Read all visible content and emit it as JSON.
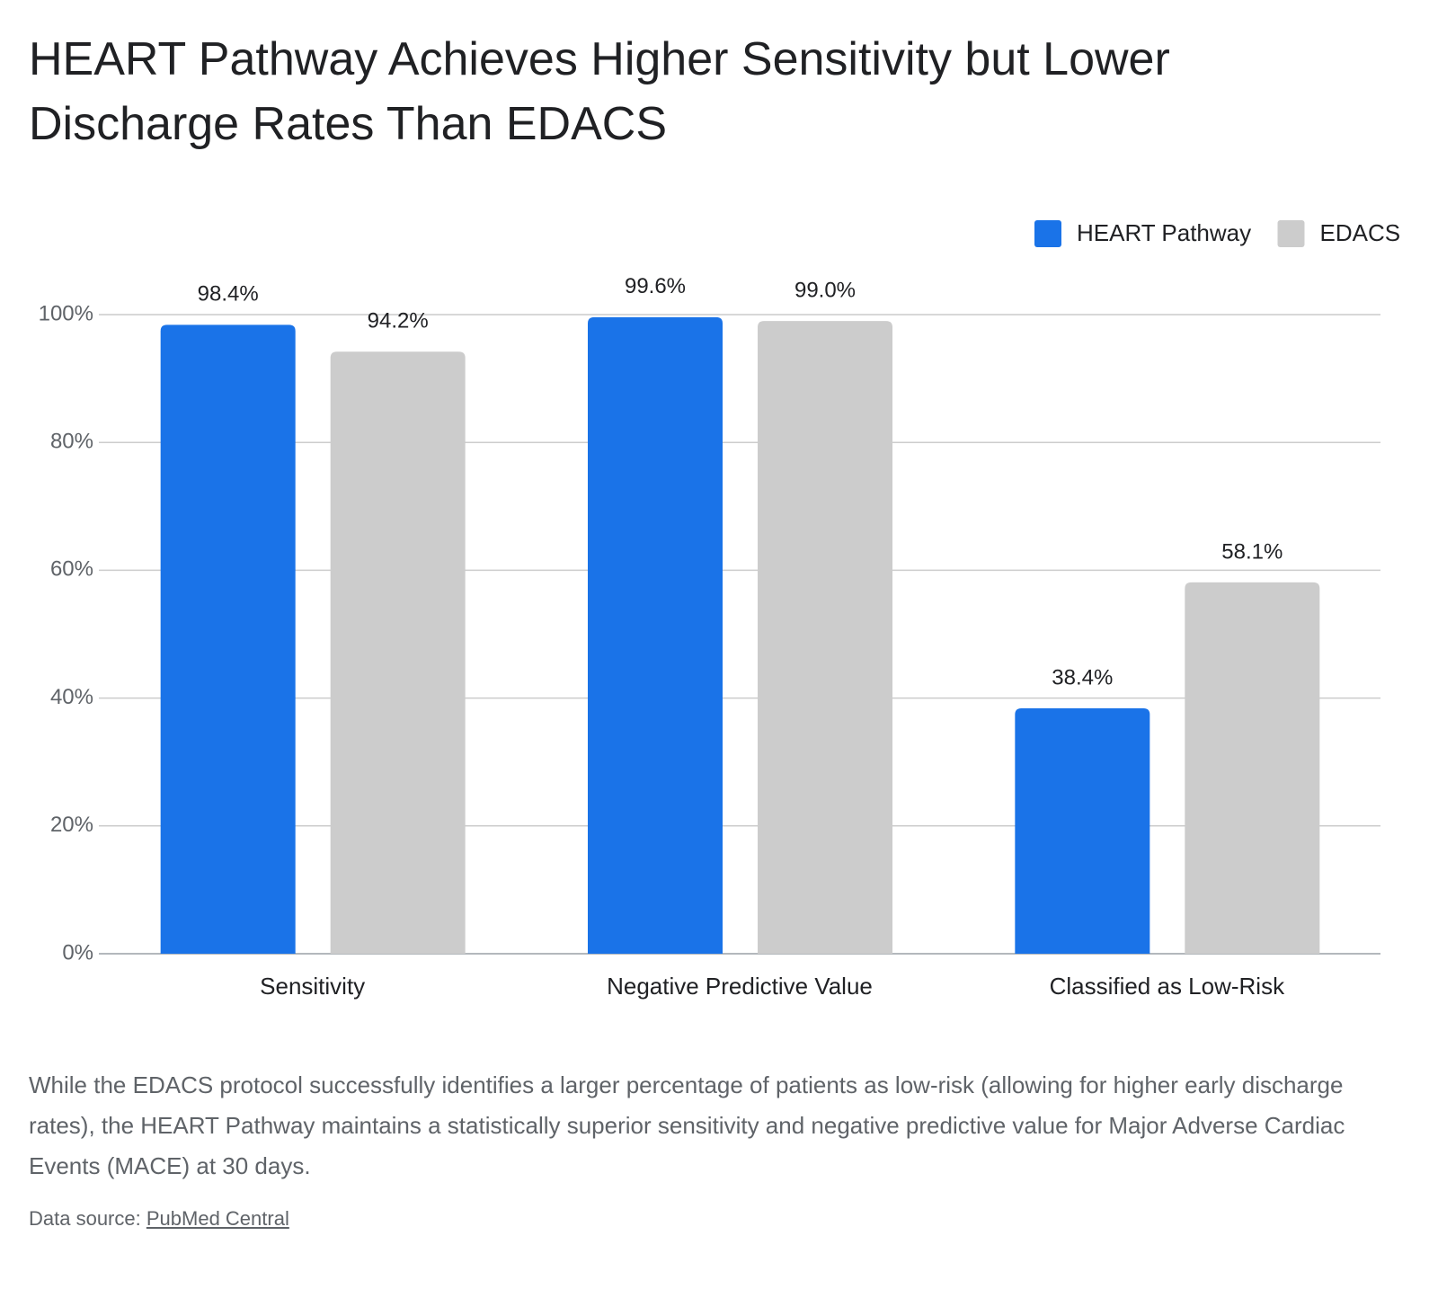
{
  "chart_data": {
    "type": "bar",
    "title": "HEART Pathway Achieves Higher Sensitivity but Lower Discharge Rates Than EDACS",
    "categories": [
      "Sensitivity",
      "Negative Predictive Value",
      "Classified as Low-Risk"
    ],
    "series": [
      {
        "name": "HEART Pathway",
        "color": "#1a73e8",
        "values": [
          98.4,
          99.6,
          38.4
        ],
        "value_labels": [
          "98.4%",
          "99.6%",
          "38.4%"
        ]
      },
      {
        "name": "EDACS",
        "color": "#cccccc",
        "values": [
          94.2,
          99.0,
          58.1
        ],
        "value_labels": [
          "94.2%",
          "99.0%",
          "58.1%"
        ]
      }
    ],
    "ylim": [
      0,
      100
    ],
    "yticks": [
      {
        "value": 0,
        "label": "0%"
      },
      {
        "value": 20,
        "label": "20%"
      },
      {
        "value": 40,
        "label": "40%"
      },
      {
        "value": 60,
        "label": "60%"
      },
      {
        "value": 80,
        "label": "80%"
      },
      {
        "value": 100,
        "label": "100%"
      }
    ],
    "grid": true,
    "legend": "top-right",
    "description": "While the EDACS protocol successfully identifies a larger percentage of patients as low-risk (allowing for higher early discharge rates), the HEART Pathway maintains a statistically superior sensitivity and negative predictive value for Major Adverse Cardiac Events (MACE) at 30 days.",
    "source": {
      "label": "Data source:",
      "link": "PubMed Central"
    }
  }
}
